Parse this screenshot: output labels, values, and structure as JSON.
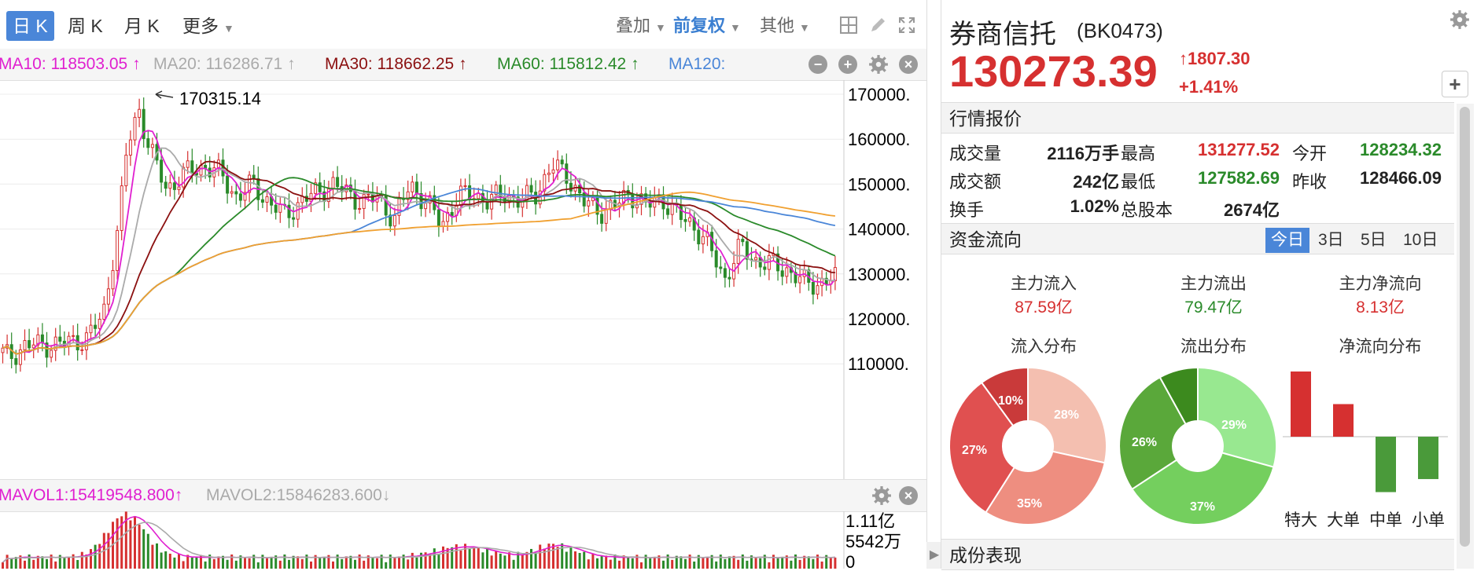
{
  "toolbar": {
    "periods": [
      "日 K",
      "周 K",
      "月 K",
      "更多"
    ],
    "overlay": "叠加",
    "adjust": "前复权",
    "other": "其他"
  },
  "ma_bar": {
    "ma10": "MA10: 118503.05 ↑",
    "ma20": "MA20: 116286.71 ↑",
    "ma30": "MA30: 118662.25 ↑",
    "ma60": "MA60: 115812.42 ↑",
    "ma120": "MA120:",
    "colors": {
      "ma10": "#e020d0",
      "ma20": "#aaaaaa",
      "ma30": "#8b1010",
      "ma60": "#2a8a2a",
      "ma120": "#4a86d8"
    }
  },
  "price_axis": [
    "170000.",
    "160000.",
    "150000.",
    "140000.",
    "130000.",
    "120000.",
    "110000."
  ],
  "peak_annotation": "170315.14",
  "vol_bar": {
    "mavol1": "MAVOL1:15419548.800↑",
    "mavol2": "MAVOL2:15846283.600↓"
  },
  "vol_axis": [
    "1.11亿",
    "5542万",
    "0"
  ],
  "stock": {
    "name": "券商信托",
    "code": "(BK0473)",
    "price": "130273.39",
    "change": "1807.30",
    "change_pct": "+1.41%"
  },
  "quote": {
    "header": "行情报价",
    "rows": [
      [
        {
          "label": "成交量",
          "value": "2116万手",
          "color": "#222"
        },
        {
          "label": "最高",
          "value": "131277.52",
          "color": "#d63030"
        },
        {
          "label": "今开",
          "value": "128234.32",
          "color": "#2a8a2a"
        }
      ],
      [
        {
          "label": "成交额",
          "value": "242亿",
          "color": "#222"
        },
        {
          "label": "最低",
          "value": "127582.69",
          "color": "#2a8a2a"
        },
        {
          "label": "昨收",
          "value": "128466.09",
          "color": "#222"
        }
      ],
      [
        {
          "label": "换手",
          "value": "1.02%",
          "color": "#222"
        },
        {
          "label": "总股本",
          "value": "2674亿",
          "color": "#222"
        }
      ]
    ]
  },
  "capital_flow": {
    "header": "资金流向",
    "tabs": [
      "今日",
      "3日",
      "5日",
      "10日"
    ],
    "main_in_label": "主力流入",
    "main_in_value": "87.59亿",
    "main_out_label": "主力流出",
    "main_out_value": "79.47亿",
    "main_net_label": "主力净流向",
    "main_net_value": "8.13亿",
    "inflow_dist_label": "流入分布",
    "outflow_dist_label": "流出分布",
    "net_dist_label": "净流向分布",
    "inflow_pcts": [
      "28%",
      "35%",
      "27%",
      "10%"
    ],
    "outflow_pcts": [
      "29%",
      "37%",
      "26%"
    ],
    "net_categories": [
      "特大",
      "大单",
      "中单",
      "小单"
    ],
    "net_values": [
      1,
      0.5,
      -0.85,
      -0.65
    ]
  },
  "components_header": "成份表现"
}
